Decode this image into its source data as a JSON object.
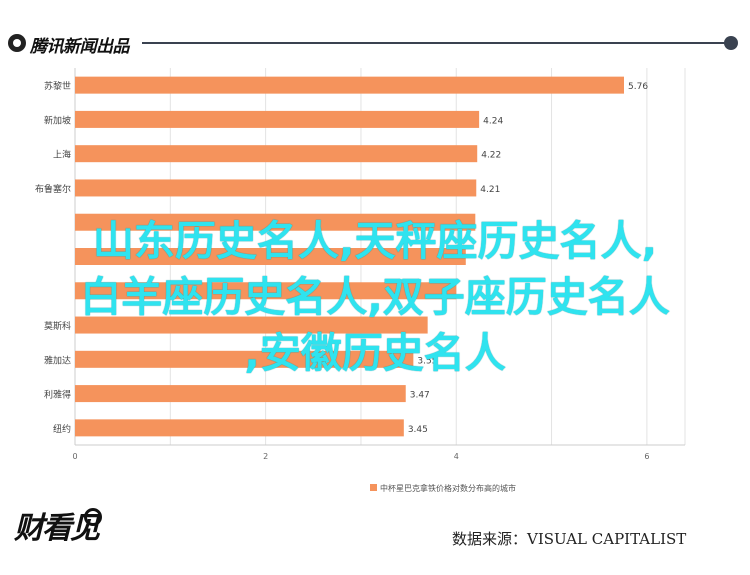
{
  "header": {
    "logo_text": "腾讯新闻出品"
  },
  "chart_data": {
    "type": "bar",
    "orientation": "horizontal",
    "categories": [
      "苏黎世",
      "新加坡",
      "上海",
      "布鲁塞尔",
      "",
      "",
      "",
      "莫斯科",
      "雅加达",
      "利雅得",
      "纽约"
    ],
    "values": [
      5.76,
      4.24,
      4.22,
      4.21,
      4.2,
      4.1,
      4.0,
      3.7,
      3.55,
      3.47,
      3.45
    ],
    "value_labels": [
      "5.76",
      "4.24",
      "4.22",
      "4.21",
      "",
      "",
      "",
      "",
      "3.55",
      "3.47",
      "3.45"
    ],
    "xlabel": "中杯星巴克拿铁价格对数分布高的城市",
    "xlim": [
      0,
      6.4
    ],
    "xticks": [
      "0",
      "2",
      "4",
      "6"
    ],
    "grid": true,
    "bar_color": "#f5935c"
  },
  "overlay": {
    "line1": "山东历史名人,天秤座历史名人,",
    "line2": "白羊座历史名人,双子座历史名人",
    "line3": ",安徽历史名人"
  },
  "footer": {
    "logo_text": "财看见",
    "source": "数据来源：VISUAL CAPITALIST"
  }
}
